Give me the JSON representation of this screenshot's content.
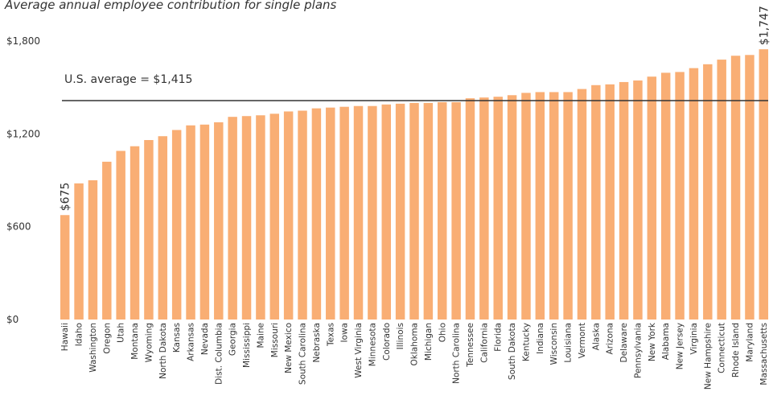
{
  "chart_data": {
    "type": "bar",
    "title": "Average annual employee contribution for single plans",
    "xlabel": "",
    "ylabel": "",
    "ylim": [
      0,
      1900
    ],
    "yticks": [
      0,
      600,
      1200,
      1800
    ],
    "ytick_labels": [
      "$0",
      "$600",
      "$1,200",
      "$1,800"
    ],
    "bar_color": "#f9ae74",
    "grid": false,
    "legend": "none",
    "categories": [
      "Hawaii",
      "Idaho",
      "Washington",
      "Oregon",
      "Utah",
      "Montana",
      "Wyoming",
      "North Dakota",
      "Kansas",
      "Arkansas",
      "Nevada",
      "Dist. Columbia",
      "Georgia",
      "Mississippi",
      "Maine",
      "Missouri",
      "New Mexico",
      "South Carolina",
      "Nebraska",
      "Texas",
      "Iowa",
      "West Virginia",
      "Minnesota",
      "Colorado",
      "Illinois",
      "Oklahoma",
      "Michigan",
      "Ohio",
      "North Carolina",
      "Tennessee",
      "California",
      "Florida",
      "South Dakota",
      "Kentucky",
      "Indiana",
      "Wisconsin",
      "Louisiana",
      "Vermont",
      "Alaska",
      "Arizona",
      "Delaware",
      "Pennsylvania",
      "New York",
      "Alabama",
      "New Jersey",
      "Virginia",
      "New Hampshire",
      "Connecticut",
      "Rhode Island",
      "Maryland",
      "Massachusetts"
    ],
    "values": [
      675,
      880,
      900,
      1020,
      1090,
      1120,
      1160,
      1185,
      1225,
      1255,
      1260,
      1275,
      1310,
      1315,
      1320,
      1330,
      1345,
      1350,
      1365,
      1370,
      1375,
      1380,
      1380,
      1390,
      1395,
      1400,
      1400,
      1405,
      1405,
      1430,
      1435,
      1440,
      1450,
      1465,
      1470,
      1470,
      1470,
      1490,
      1515,
      1520,
      1535,
      1545,
      1570,
      1595,
      1600,
      1625,
      1650,
      1680,
      1705,
      1710,
      1747
    ],
    "reference_line": {
      "value": 1415,
      "label": "U.S. average = $1,415",
      "color": "#333333"
    },
    "annotations": [
      {
        "category": "Hawaii",
        "text": "$675"
      },
      {
        "category": "Massachusetts",
        "text": "$1,747"
      }
    ]
  }
}
